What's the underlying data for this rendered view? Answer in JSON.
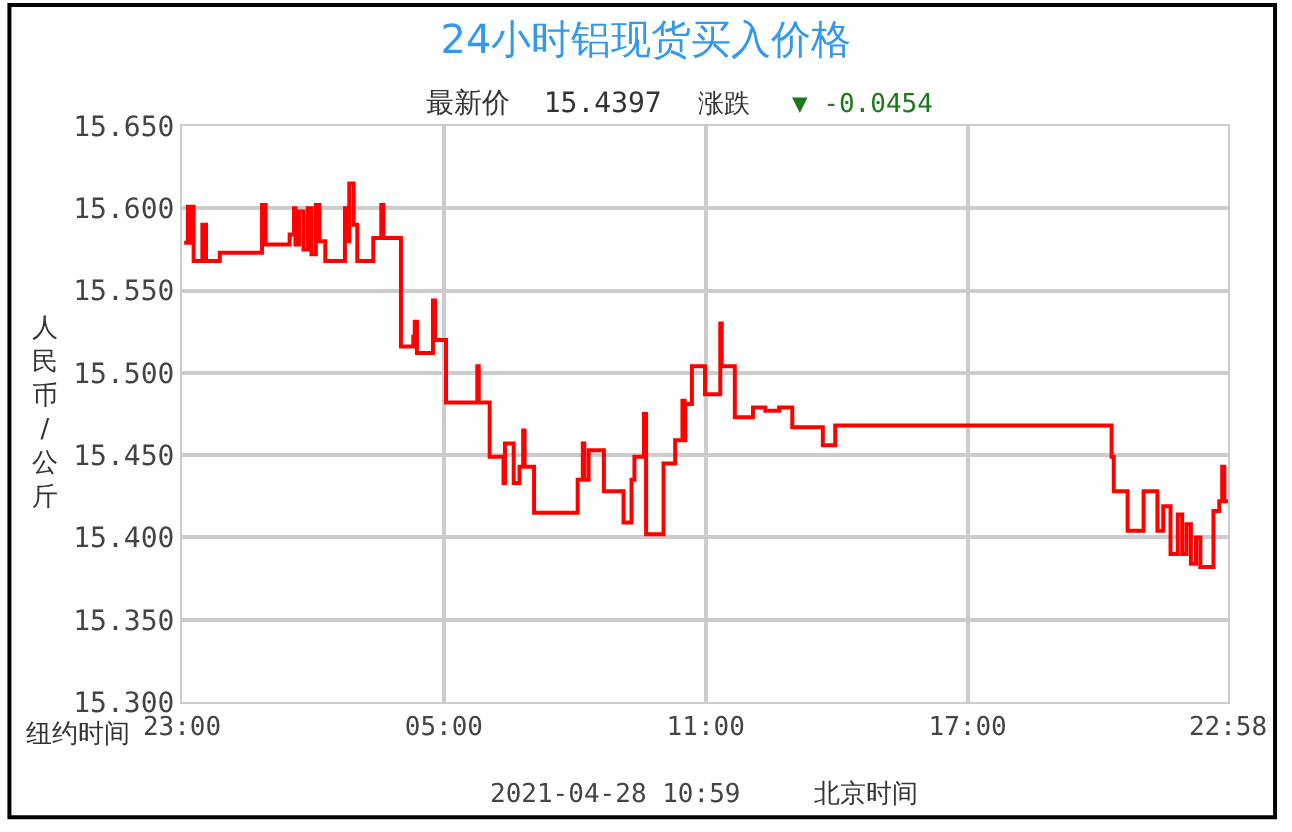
{
  "chart_data": {
    "type": "step",
    "title": "24小时铝现货买入价格",
    "subtitle": "最新价  15.4397",
    "ylabel": "人民币/公斤",
    "annotations": [
      "涨跌",
      "▼ -0.0454",
      "纽约时间",
      "2021-04-28 10:59",
      "北京时间"
    ],
    "x": [
      "2021-04-26T23:03",
      "2021-04-26T23:08",
      "2021-04-26T23:11",
      "2021-04-26T23:14",
      "2021-04-26T23:16",
      "2021-04-26T23:25",
      "2021-04-26T23:28",
      "2021-04-26T23:33",
      "2021-04-26T23:44",
      "2021-04-26T23:52",
      "2021-04-27T00:47",
      "2021-04-27T00:50",
      "2021-04-27T00:55",
      "2021-04-27T01:22",
      "2021-04-27T01:28",
      "2021-04-27T01:34",
      "2021-04-27T01:36",
      "2021-04-27T01:41",
      "2021-04-27T01:47",
      "2021-04-27T01:53",
      "2021-04-27T01:58",
      "2021-04-27T02:04",
      "2021-04-27T02:09",
      "2021-04-27T02:17",
      "2021-04-27T02:37",
      "2021-04-27T02:44",
      "2021-04-27T02:47",
      "2021-04-27T02:50",
      "2021-04-27T02:56",
      "2021-04-27T03:01",
      "2021-04-27T03:20",
      "2021-04-27T03:23",
      "2021-04-27T03:34",
      "2021-04-27T03:37",
      "2021-04-27T03:59",
      "2021-04-27T04:01",
      "2021-04-27T04:18",
      "2021-04-27T04:20",
      "2021-04-27T04:23",
      "2021-04-27T04:43",
      "2021-04-27T04:45",
      "2021-04-27T04:48",
      "2021-04-27T05:02",
      "2021-04-27T05:03",
      "2021-04-27T05:43",
      "2021-04-27T05:46",
      "2021-04-27T05:48",
      "2021-04-27T06:02",
      "2021-04-27T06:03",
      "2021-04-27T06:21",
      "2021-04-27T06:22",
      "2021-04-27T06:24",
      "2021-04-27T06:35",
      "2021-04-27T06:36",
      "2021-04-27T06:43",
      "2021-04-27T06:44",
      "2021-04-27T06:49",
      "2021-04-27T06:51",
      "2021-04-27T07:02",
      "2021-04-27T07:04",
      "2021-04-27T08:02",
      "2021-04-27T08:04",
      "2021-04-27T08:11",
      "2021-04-27T08:13",
      "2021-04-27T08:19",
      "2021-04-27T08:38",
      "2021-04-27T08:40",
      "2021-04-27T09:05",
      "2021-04-27T09:07",
      "2021-04-27T09:16",
      "2021-04-27T09:18",
      "2021-04-27T09:22",
      "2021-04-27T09:33",
      "2021-04-27T09:35",
      "2021-04-27T09:38",
      "2021-04-27T10:00",
      "2021-04-27T10:02",
      "2021-04-27T10:17",
      "2021-04-27T10:18",
      "2021-04-27T10:25",
      "2021-04-27T10:28",
      "2021-04-27T10:31",
      "2021-04-27T10:32",
      "2021-04-27T10:40",
      "2021-04-27T10:41",
      "2021-04-27T10:58",
      "2021-04-27T10:59",
      "2021-04-27T11:17",
      "2021-04-27T11:20",
      "2021-04-27T11:22",
      "2021-04-27T11:39",
      "2021-04-27T11:40",
      "2021-04-27T12:04",
      "2021-04-27T12:05",
      "2021-04-27T12:20",
      "2021-04-27T12:22",
      "2021-04-27T12:39",
      "2021-04-27T12:41",
      "2021-04-27T12:58",
      "2021-04-27T12:59",
      "2021-04-27T13:40",
      "2021-04-27T13:41",
      "2021-04-27T13:56",
      "2021-04-27T13:58",
      "2021-04-27T20:17",
      "2021-04-27T20:18",
      "2021-04-27T20:21",
      "2021-04-27T20:38",
      "2021-04-27T20:40",
      "2021-04-27T21:01",
      "2021-04-27T21:02",
      "2021-04-27T21:20",
      "2021-04-27T21:21",
      "2021-04-27T21:28",
      "2021-04-27T21:29",
      "2021-04-27T21:36",
      "2021-04-27T21:39",
      "2021-04-27T21:47",
      "2021-04-27T21:49",
      "2021-04-27T21:55",
      "2021-04-27T22:01",
      "2021-04-27T22:07",
      "2021-04-27T22:14",
      "2021-04-27T22:20",
      "2021-04-27T22:37",
      "2021-04-27T22:38",
      "2021-04-27T22:44",
      "2021-04-27T22:46",
      "2021-04-27T22:50",
      "2021-04-27T22:53",
      "2021-04-27T22:58"
    ],
    "series": [
      {
        "color": "#ff0000",
        "values": [
          15.579,
          15.601,
          15.579,
          15.601,
          15.568,
          15.568,
          15.59,
          15.568,
          15.568,
          15.573,
          15.573,
          15.602,
          15.578,
          15.578,
          15.584,
          15.6,
          15.578,
          15.598,
          15.575,
          15.6,
          15.572,
          15.602,
          15.58,
          15.568,
          15.568,
          15.6,
          15.58,
          15.615,
          15.59,
          15.568,
          15.568,
          15.582,
          15.602,
          15.582,
          15.582,
          15.516,
          15.522,
          15.531,
          15.512,
          15.512,
          15.544,
          15.52,
          15.52,
          15.482,
          15.482,
          15.504,
          15.482,
          15.482,
          15.449,
          15.449,
          15.433,
          15.457,
          15.457,
          15.433,
          15.433,
          15.443,
          15.465,
          15.443,
          15.443,
          15.415,
          15.415,
          15.435,
          15.457,
          15.435,
          15.453,
          15.453,
          15.428,
          15.428,
          15.409,
          15.409,
          15.435,
          15.449,
          15.449,
          15.475,
          15.402,
          15.402,
          15.445,
          15.445,
          15.459,
          15.459,
          15.483,
          15.459,
          15.481,
          15.481,
          15.504,
          15.504,
          15.487,
          15.487,
          15.53,
          15.504,
          15.504,
          15.473,
          15.473,
          15.479,
          15.479,
          15.477,
          15.477,
          15.479,
          15.479,
          15.467,
          15.467,
          15.456,
          15.456,
          15.468,
          15.468,
          15.449,
          15.428,
          15.428,
          15.404,
          15.404,
          15.428,
          15.428,
          15.404,
          15.404,
          15.419,
          15.419,
          15.39,
          15.39,
          15.414,
          15.39,
          15.408,
          15.384,
          15.4,
          15.382,
          15.382,
          15.416,
          15.416,
          15.422,
          15.443,
          15.422,
          15.422
        ]
      }
    ],
    "xlim": [
      "2021-04-26T23:00",
      "2021-04-27T22:58"
    ],
    "xticks": [
      {
        "value": "2021-04-26T23:00",
        "label": "23:00"
      },
      {
        "value": "2021-04-27T05:00",
        "label": "05:00"
      },
      {
        "value": "2021-04-27T11:00",
        "label": "11:00"
      },
      {
        "value": "2021-04-27T17:00",
        "label": "17:00"
      },
      {
        "value": "2021-04-27T22:58",
        "label": "22:58"
      }
    ],
    "ylim": [
      15.3,
      15.65
    ],
    "yticks": [
      {
        "value": 15.3,
        "label": "15.300"
      },
      {
        "value": 15.35,
        "label": "15.350"
      },
      {
        "value": 15.4,
        "label": "15.400"
      },
      {
        "value": 15.45,
        "label": "15.450"
      },
      {
        "value": 15.5,
        "label": "15.500"
      },
      {
        "value": 15.55,
        "label": "15.550"
      },
      {
        "value": 15.6,
        "label": "15.600"
      },
      {
        "value": 15.65,
        "label": "15.650"
      }
    ],
    "grid": true,
    "line_style": "solid",
    "marker": "none"
  }
}
